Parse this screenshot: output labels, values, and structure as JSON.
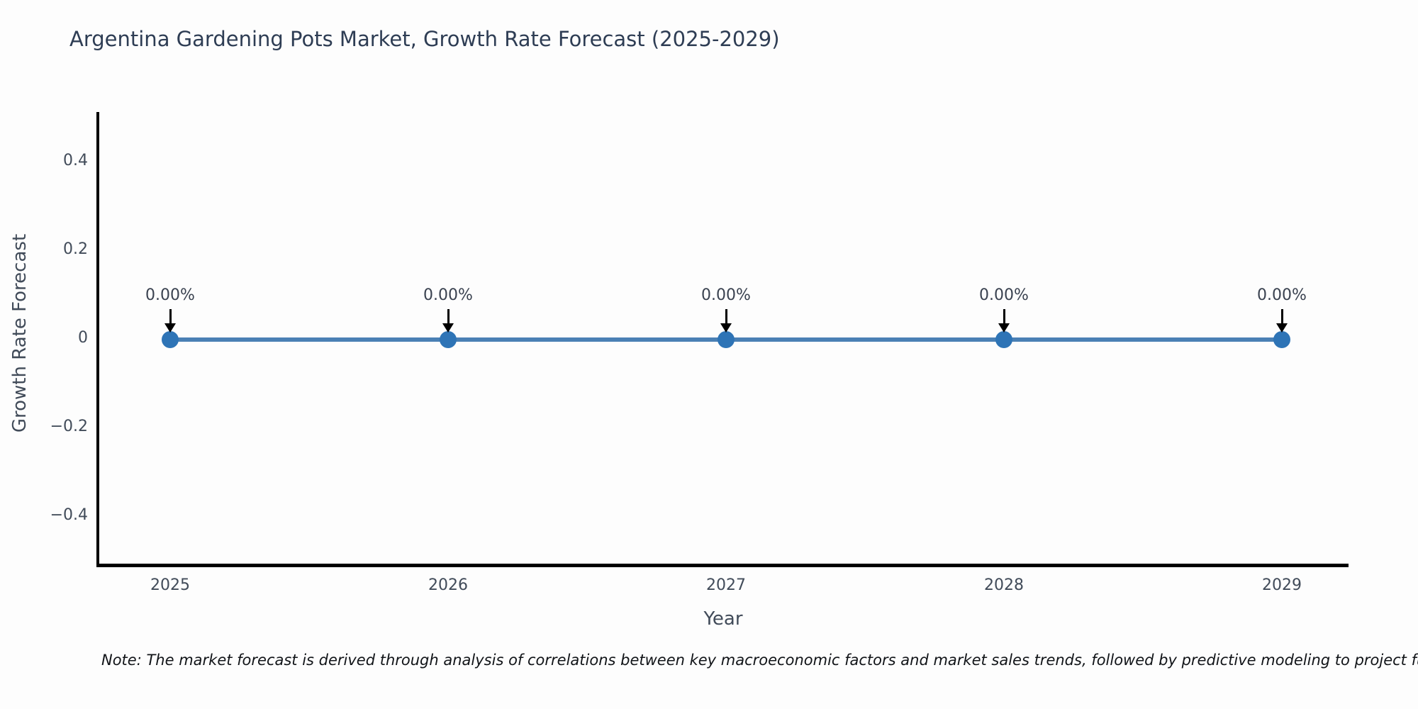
{
  "title": "Argentina Gardening Pots Market, Growth Rate Forecast (2025-2029)",
  "note": "Note: The market forecast is derived through analysis of correlations between key macroeconomic factors and market sales trends, followed by predictive modeling to project future sa",
  "colors": {
    "line": "#4a80b5",
    "marker": "#2e74b6",
    "title_text": "#2e3d54",
    "tick_text": "#414b59",
    "annotation_text": "#3a4250",
    "axis_spine": "#000000",
    "background": "#fdfdfd"
  },
  "chart_data": {
    "type": "line",
    "title": "Argentina Gardening Pots Market, Growth Rate Forecast (2025-2029)",
    "xlabel": "Year",
    "ylabel": "Growth Rate Forecast",
    "x": [
      2025,
      2026,
      2027,
      2028,
      2029
    ],
    "series": [
      {
        "name": "Growth Rate Forecast",
        "values": [
          0,
          0,
          0,
          0,
          0
        ]
      }
    ],
    "point_labels": [
      "0.00%",
      "0.00%",
      "0.00%",
      "0.00%",
      "0.00%"
    ],
    "xtick_labels": [
      "2025",
      "2026",
      "2027",
      "2028",
      "2029"
    ],
    "ytick_labels": [
      "0.4",
      "0.2",
      "0",
      "−0.2",
      "−0.4"
    ],
    "ytick_values": [
      0.4,
      0.2,
      0,
      -0.2,
      -0.4
    ],
    "ylim": [
      -0.5,
      0.5
    ],
    "grid": false,
    "legend_position": "none",
    "annotation_style": "value label with down arrow to each point"
  }
}
